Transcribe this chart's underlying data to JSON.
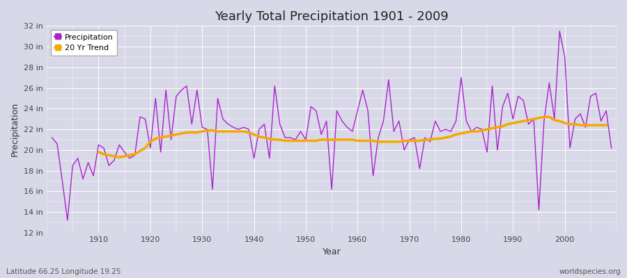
{
  "title": "Yearly Total Precipitation 1901 - 2009",
  "xlabel": "Year",
  "ylabel": "Precipitation",
  "subtitle_left": "Latitude 66.25 Longitude 19.25",
  "subtitle_right": "worldspecies.org",
  "bg_color": "#d8d8e8",
  "plot_bg_color": "#d8d8e8",
  "precip_color": "#aa22cc",
  "trend_color": "#f5a800",
  "ylim": [
    12,
    32
  ],
  "yticks": [
    12,
    14,
    16,
    18,
    20,
    22,
    24,
    26,
    28,
    30,
    32
  ],
  "xlim": [
    1900,
    2010
  ],
  "xticks": [
    1910,
    1920,
    1930,
    1940,
    1950,
    1960,
    1970,
    1980,
    1990,
    2000
  ],
  "years": [
    1901,
    1902,
    1903,
    1904,
    1905,
    1906,
    1907,
    1908,
    1909,
    1910,
    1911,
    1912,
    1913,
    1914,
    1915,
    1916,
    1917,
    1918,
    1919,
    1920,
    1921,
    1922,
    1923,
    1924,
    1925,
    1926,
    1927,
    1928,
    1929,
    1930,
    1931,
    1932,
    1933,
    1934,
    1935,
    1936,
    1937,
    1938,
    1939,
    1940,
    1941,
    1942,
    1943,
    1944,
    1945,
    1946,
    1947,
    1948,
    1949,
    1950,
    1951,
    1952,
    1953,
    1954,
    1955,
    1956,
    1957,
    1958,
    1959,
    1960,
    1961,
    1962,
    1963,
    1964,
    1965,
    1966,
    1967,
    1968,
    1969,
    1970,
    1971,
    1972,
    1973,
    1974,
    1975,
    1976,
    1977,
    1978,
    1979,
    1980,
    1981,
    1982,
    1983,
    1984,
    1985,
    1986,
    1987,
    1988,
    1989,
    1990,
    1991,
    1992,
    1993,
    1994,
    1995,
    1996,
    1997,
    1998,
    1999,
    2000,
    2001,
    2002,
    2003,
    2004,
    2005,
    2006,
    2007,
    2008,
    2009
  ],
  "precip": [
    21.2,
    20.6,
    17.0,
    13.2,
    18.5,
    19.2,
    17.2,
    18.8,
    17.5,
    20.5,
    20.2,
    18.5,
    19.0,
    20.5,
    19.8,
    19.2,
    19.5,
    23.2,
    23.0,
    20.2,
    25.0,
    19.8,
    25.8,
    21.0,
    25.2,
    25.8,
    26.2,
    22.5,
    25.8,
    22.2,
    22.0,
    16.2,
    25.0,
    23.0,
    22.5,
    22.2,
    22.0,
    22.2,
    22.0,
    19.2,
    22.0,
    22.5,
    19.2,
    26.2,
    22.5,
    21.2,
    21.2,
    21.0,
    21.8,
    21.0,
    24.2,
    23.8,
    21.5,
    22.8,
    16.2,
    23.8,
    22.8,
    22.2,
    21.8,
    23.8,
    25.8,
    23.8,
    17.5,
    21.2,
    22.8,
    26.8,
    21.8,
    22.8,
    20.0,
    21.0,
    21.2,
    18.2,
    21.2,
    20.8,
    22.8,
    21.8,
    22.0,
    21.8,
    22.8,
    27.0,
    22.8,
    21.8,
    22.2,
    22.0,
    19.8,
    26.2,
    20.0,
    24.2,
    25.5,
    23.0,
    25.2,
    24.8,
    22.5,
    23.0,
    14.2,
    22.8,
    26.5,
    23.0,
    31.5,
    29.0,
    20.2,
    23.0,
    23.5,
    22.2,
    25.2,
    25.5,
    22.8,
    23.8,
    20.2
  ],
  "trend": [
    null,
    null,
    null,
    null,
    null,
    null,
    null,
    null,
    null,
    19.8,
    19.6,
    19.5,
    19.4,
    19.3,
    19.4,
    19.5,
    19.6,
    19.9,
    20.2,
    20.8,
    21.1,
    21.2,
    21.3,
    21.4,
    21.5,
    21.6,
    21.7,
    21.7,
    21.7,
    21.8,
    21.9,
    21.9,
    21.8,
    21.8,
    21.8,
    21.8,
    21.8,
    21.8,
    21.7,
    21.5,
    21.3,
    21.2,
    21.1,
    21.0,
    21.0,
    20.9,
    20.9,
    20.9,
    20.9,
    20.9,
    20.9,
    20.9,
    21.0,
    21.0,
    21.0,
    21.0,
    21.0,
    21.0,
    21.0,
    20.9,
    20.9,
    20.9,
    20.9,
    20.8,
    20.8,
    20.8,
    20.8,
    20.8,
    20.9,
    20.9,
    20.9,
    20.9,
    21.0,
    21.0,
    21.1,
    21.1,
    21.2,
    21.3,
    21.5,
    21.6,
    21.7,
    21.8,
    21.8,
    21.9,
    22.0,
    22.1,
    22.2,
    22.3,
    22.5,
    22.6,
    22.7,
    22.8,
    22.9,
    23.0,
    23.1,
    23.2,
    23.2,
    22.9,
    22.8,
    22.6,
    22.5,
    22.5,
    22.4,
    22.4,
    22.4,
    22.4,
    22.4,
    22.4
  ]
}
